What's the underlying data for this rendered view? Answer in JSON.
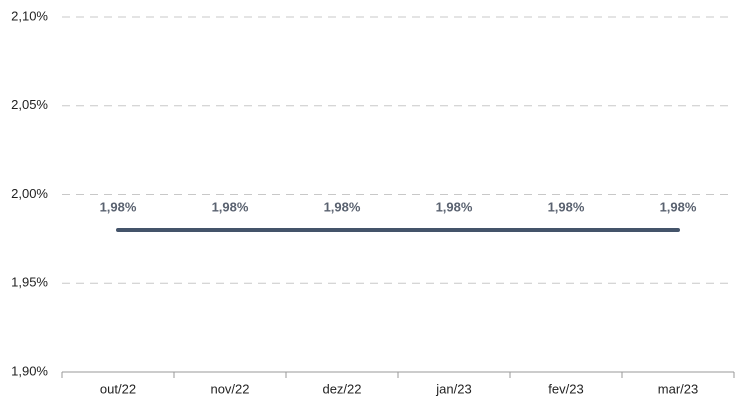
{
  "chart_data": {
    "type": "line",
    "categories": [
      "out/22",
      "nov/22",
      "dez/22",
      "jan/23",
      "fev/23",
      "mar/23"
    ],
    "series": [
      {
        "name": "",
        "color": "#44546a",
        "values": [
          1.98,
          1.98,
          1.98,
          1.98,
          1.98,
          1.98
        ],
        "value_labels": [
          "1,98%",
          "1,98%",
          "1,98%",
          "1,98%",
          "1,98%",
          "1,98%"
        ]
      }
    ],
    "ylim": [
      1.9,
      2.1
    ],
    "yticks": [
      {
        "value": 1.9,
        "label": "1,90%"
      },
      {
        "value": 1.95,
        "label": "1,95%"
      },
      {
        "value": 2.0,
        "label": "2,00%"
      },
      {
        "value": 2.05,
        "label": "2,05%"
      },
      {
        "value": 2.1,
        "label": "2,10%"
      }
    ],
    "grid": true
  }
}
